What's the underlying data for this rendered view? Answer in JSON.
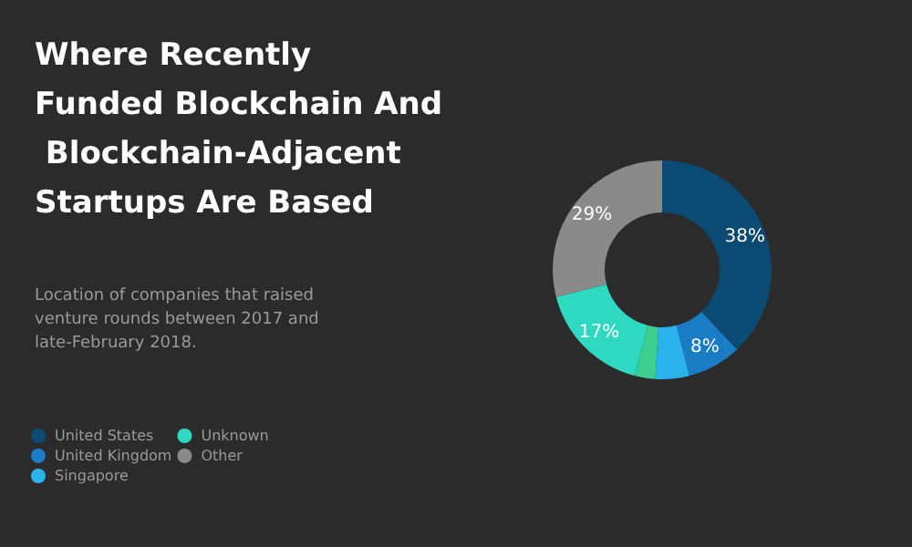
{
  "chart_data": {
    "type": "donut",
    "title": "Where Recently Funded Blockchain And Blockchain-Adjacent Startups Are Based",
    "subtitle": "Location of companies that raised venture rounds between 2017 and late-February 2018.",
    "categories": [
      "United States",
      "United Kingdom",
      "Singapore",
      null,
      "Unknown",
      "Other"
    ],
    "values": [
      38,
      8,
      5,
      3,
      17,
      29
    ],
    "colors": [
      "#0b4a72",
      "#1a7cc4",
      "#2bb3ee",
      "#3dcf8f",
      "#2fd8c0",
      "#8a8a8a"
    ],
    "value_labels": [
      "38%",
      "8%",
      null,
      null,
      "17%",
      "29%"
    ],
    "legend": "bottom left"
  }
}
